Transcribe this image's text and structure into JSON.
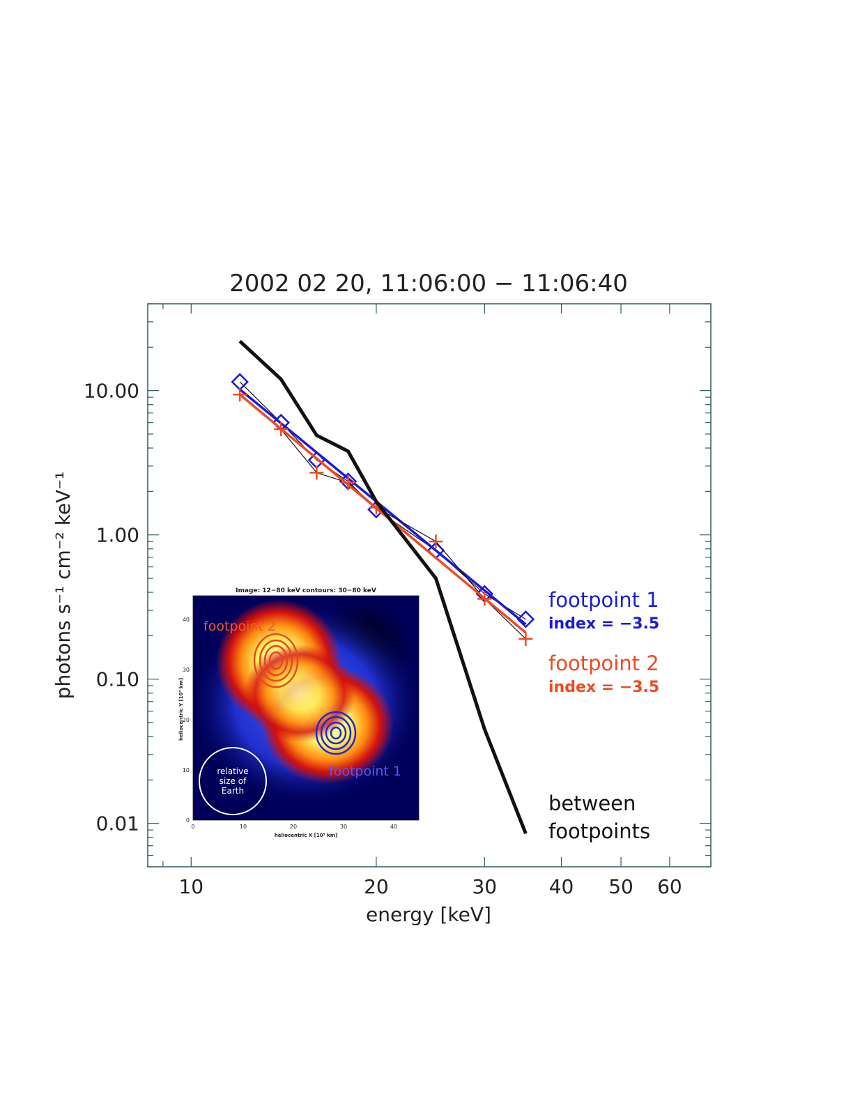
{
  "chart_data": {
    "type": "line",
    "title": "2002 02 20, 11:06:00 − 11:06:40",
    "xlabel": "energy [keV]",
    "ylabel": "photons s⁻¹ cm⁻² keV⁻¹",
    "xscale": "log",
    "yscale": "log",
    "xlim": [
      8.5,
      70
    ],
    "ylim": [
      0.005,
      40
    ],
    "x_ticks": [
      10,
      20,
      30,
      40,
      50,
      60
    ],
    "x_tick_labels": [
      "10",
      "20",
      "30",
      "40",
      "50",
      "60"
    ],
    "y_ticks": [
      0.01,
      0.1,
      1,
      10
    ],
    "y_tick_labels": [
      "0.01",
      "0.10",
      "1.00",
      "10.00"
    ],
    "grid": false,
    "series": [
      {
        "name": "footpoint 1",
        "sublabel": "index = −3.5",
        "color": "#1a1adc",
        "marker": "diamond",
        "x": [
          12,
          14,
          16,
          18,
          20,
          25,
          30,
          35
        ],
        "y": [
          11.5,
          6.0,
          3.3,
          2.35,
          1.5,
          0.78,
          0.39,
          0.26
        ],
        "fit": {
          "x": [
            12,
            35
          ],
          "y": [
            10.2,
            0.24
          ]
        }
      },
      {
        "name": "footpoint 2",
        "sublabel": "index = −3.5",
        "color": "#f04a1e",
        "marker": "plus",
        "x": [
          12,
          14,
          16,
          18,
          20,
          25,
          30,
          35
        ],
        "y": [
          9.4,
          5.4,
          2.7,
          2.3,
          1.55,
          0.9,
          0.36,
          0.19
        ],
        "fit": {
          "x": [
            12,
            35
          ],
          "y": [
            9.4,
            0.21
          ]
        }
      },
      {
        "name": "between footpoints",
        "color": "#111111",
        "marker": "none",
        "x": [
          12,
          14,
          16,
          18,
          20,
          25,
          30,
          35
        ],
        "y": [
          22,
          12,
          4.9,
          3.8,
          1.7,
          0.5,
          0.045,
          0.0085
        ]
      }
    ]
  },
  "inset": {
    "title": "Image: 12−80 keV  contours: 30−80 keV",
    "xlabel": "heliocentric X [10³ km]",
    "ylabel": "heliocentric Y [10³ km]",
    "x_tick_labels": [
      "0",
      "10",
      "20",
      "30",
      "40"
    ],
    "y_tick_labels": [
      "0",
      "10",
      "20",
      "30",
      "40"
    ],
    "label_footpoint_2": "footpoint 2",
    "label_footpoint_1": "footpoint 1",
    "earth_label": [
      "relative",
      "size of",
      "Earth"
    ]
  }
}
